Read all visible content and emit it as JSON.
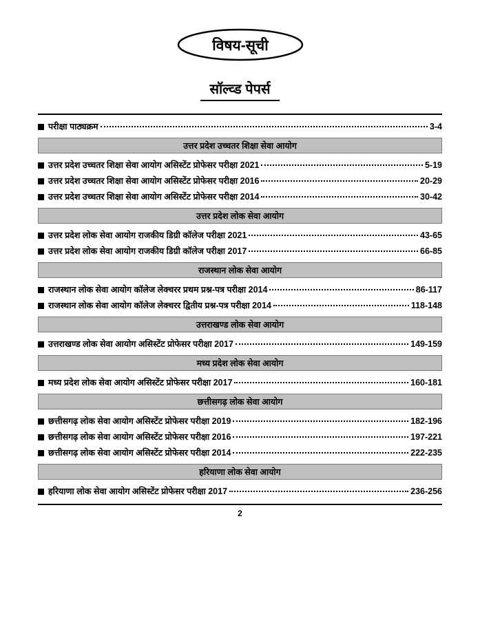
{
  "title": "विषय-सूची",
  "subtitle": "सॉल्व्ड पेपर्स",
  "page_number": "2",
  "sections": [
    {
      "header": null,
      "entries": [
        {
          "title": "परीक्षा पाठ्यक्रम",
          "pages": "3-4"
        }
      ]
    },
    {
      "header": "उत्तर प्रदेश उच्चतर शिक्षा सेवा आयोग",
      "entries": [
        {
          "title": "उत्तर प्रदेश उच्चतर शिक्षा सेवा आयोग असिस्टेंट प्रोफेसर परीक्षा 2021",
          "pages": "5-19"
        },
        {
          "title": "उत्तर प्रदेश उच्चतर शिक्षा सेवा आयोग असिस्टेंट प्रोफेसर परीक्षा 2016",
          "pages": "20-29"
        },
        {
          "title": "उत्तर प्रदेश उच्चतर शिक्षा सेवा आयोग असिस्टेंट प्रोफेसर परीक्षा 2014",
          "pages": "30-42"
        }
      ]
    },
    {
      "header": "उत्तर प्रदेश लोक सेवा आयोग",
      "entries": [
        {
          "title": "उत्तर प्रदेश लोक सेवा आयोग राजकीय डिग्री कॉलेज परीक्षा 2021",
          "pages": "43-65"
        },
        {
          "title": "उत्तर प्रदेश लोक सेवा आयोग राजकीय डिग्री कॉलेज परीक्षा 2017",
          "pages": "66-85"
        }
      ]
    },
    {
      "header": "राजस्थान लोक सेवा आयोग",
      "entries": [
        {
          "title": "राजस्थान लोक सेवा आयोग कॉलेज लेक्चरर प्रथम प्रश्न-पत्र परीक्षा 2014",
          "pages": "86-117"
        },
        {
          "title": "राजस्थान लोक सेवा आयोग कॉलेज लेक्चरर द्वितीय प्रश्न-पत्र परीक्षा 2014",
          "pages": "118-148"
        }
      ]
    },
    {
      "header": "उत्तराखण्ड लोक सेवा आयोग",
      "entries": [
        {
          "title": "उत्तराखण्ड लोक सेवा आयोग असिस्टेंट प्रोफेसर परीक्षा 2017",
          "pages": "149-159"
        }
      ]
    },
    {
      "header": "मध्य प्रदेश लोक सेवा आयोग",
      "entries": [
        {
          "title": "मध्य प्रदेश लोक सेवा आयोग असिस्टेंट प्रोफेसर परीक्षा 2017",
          "pages": "160-181"
        }
      ]
    },
    {
      "header": "छत्तीसगढ़ लोक सेवा आयोग",
      "entries": [
        {
          "title": "छत्तीसगढ़ लोक सेवा आयोग असिस्टेंट प्रोफेसर परीक्षा 2019",
          "pages": "182-196"
        },
        {
          "title": "छत्तीसगढ़ लोक सेवा आयोग असिस्टेंट प्रोफेसर परीक्षा 2016",
          "pages": "197-221"
        },
        {
          "title": "छत्तीसगढ़ लोक सेवा आयोग असिस्टेंट प्रोफेसर परीक्षा 2014",
          "pages": "222-235"
        }
      ]
    },
    {
      "header": "हरियाणा लोक सेवा आयोग",
      "entries": [
        {
          "title": "हरियाणा लोक सेवा आयोग असिस्टेंट प्रोफेसर परीक्षा 2017",
          "pages": "236-256"
        }
      ]
    }
  ]
}
